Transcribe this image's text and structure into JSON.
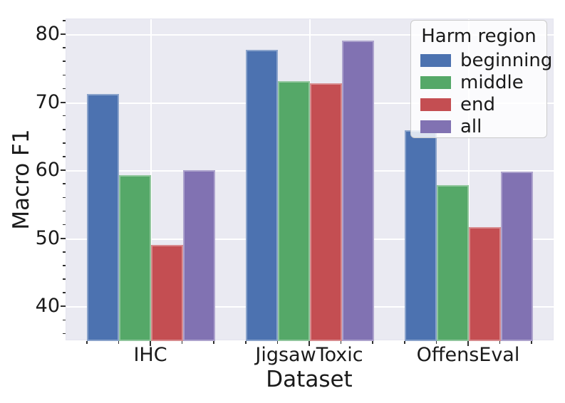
{
  "chart_data": {
    "type": "bar",
    "title": "",
    "xlabel": "Dataset",
    "ylabel": "Macro F1",
    "categories": [
      "IHC",
      "JigsawToxic",
      "OffensEval"
    ],
    "series": [
      {
        "name": "beginning",
        "color": "#4C72B0",
        "values": [
          71.3,
          77.8,
          66.0
        ]
      },
      {
        "name": "middle",
        "color": "#55A868",
        "values": [
          59.4,
          73.2,
          57.9
        ]
      },
      {
        "name": "end",
        "color": "#C44E52",
        "values": [
          49.1,
          72.9,
          51.7
        ]
      },
      {
        "name": "all",
        "color": "#8172B2",
        "values": [
          60.1,
          79.2,
          59.9
        ]
      }
    ],
    "ylim": [
      35,
      82.3
    ],
    "yticks": [
      40,
      50,
      60,
      70,
      80
    ],
    "y_minor_tick_step": 2,
    "grid": true,
    "legend": {
      "title": "Harm region",
      "position": "upper right"
    }
  },
  "colors": {
    "axes_background": "#EAEAF2",
    "gridline": "#FFFFFF",
    "tick": "#303030",
    "text": "#1a1a1a",
    "legend_background": "rgba(255,255,255,0.8)",
    "legend_border": "#cbcbcb"
  }
}
